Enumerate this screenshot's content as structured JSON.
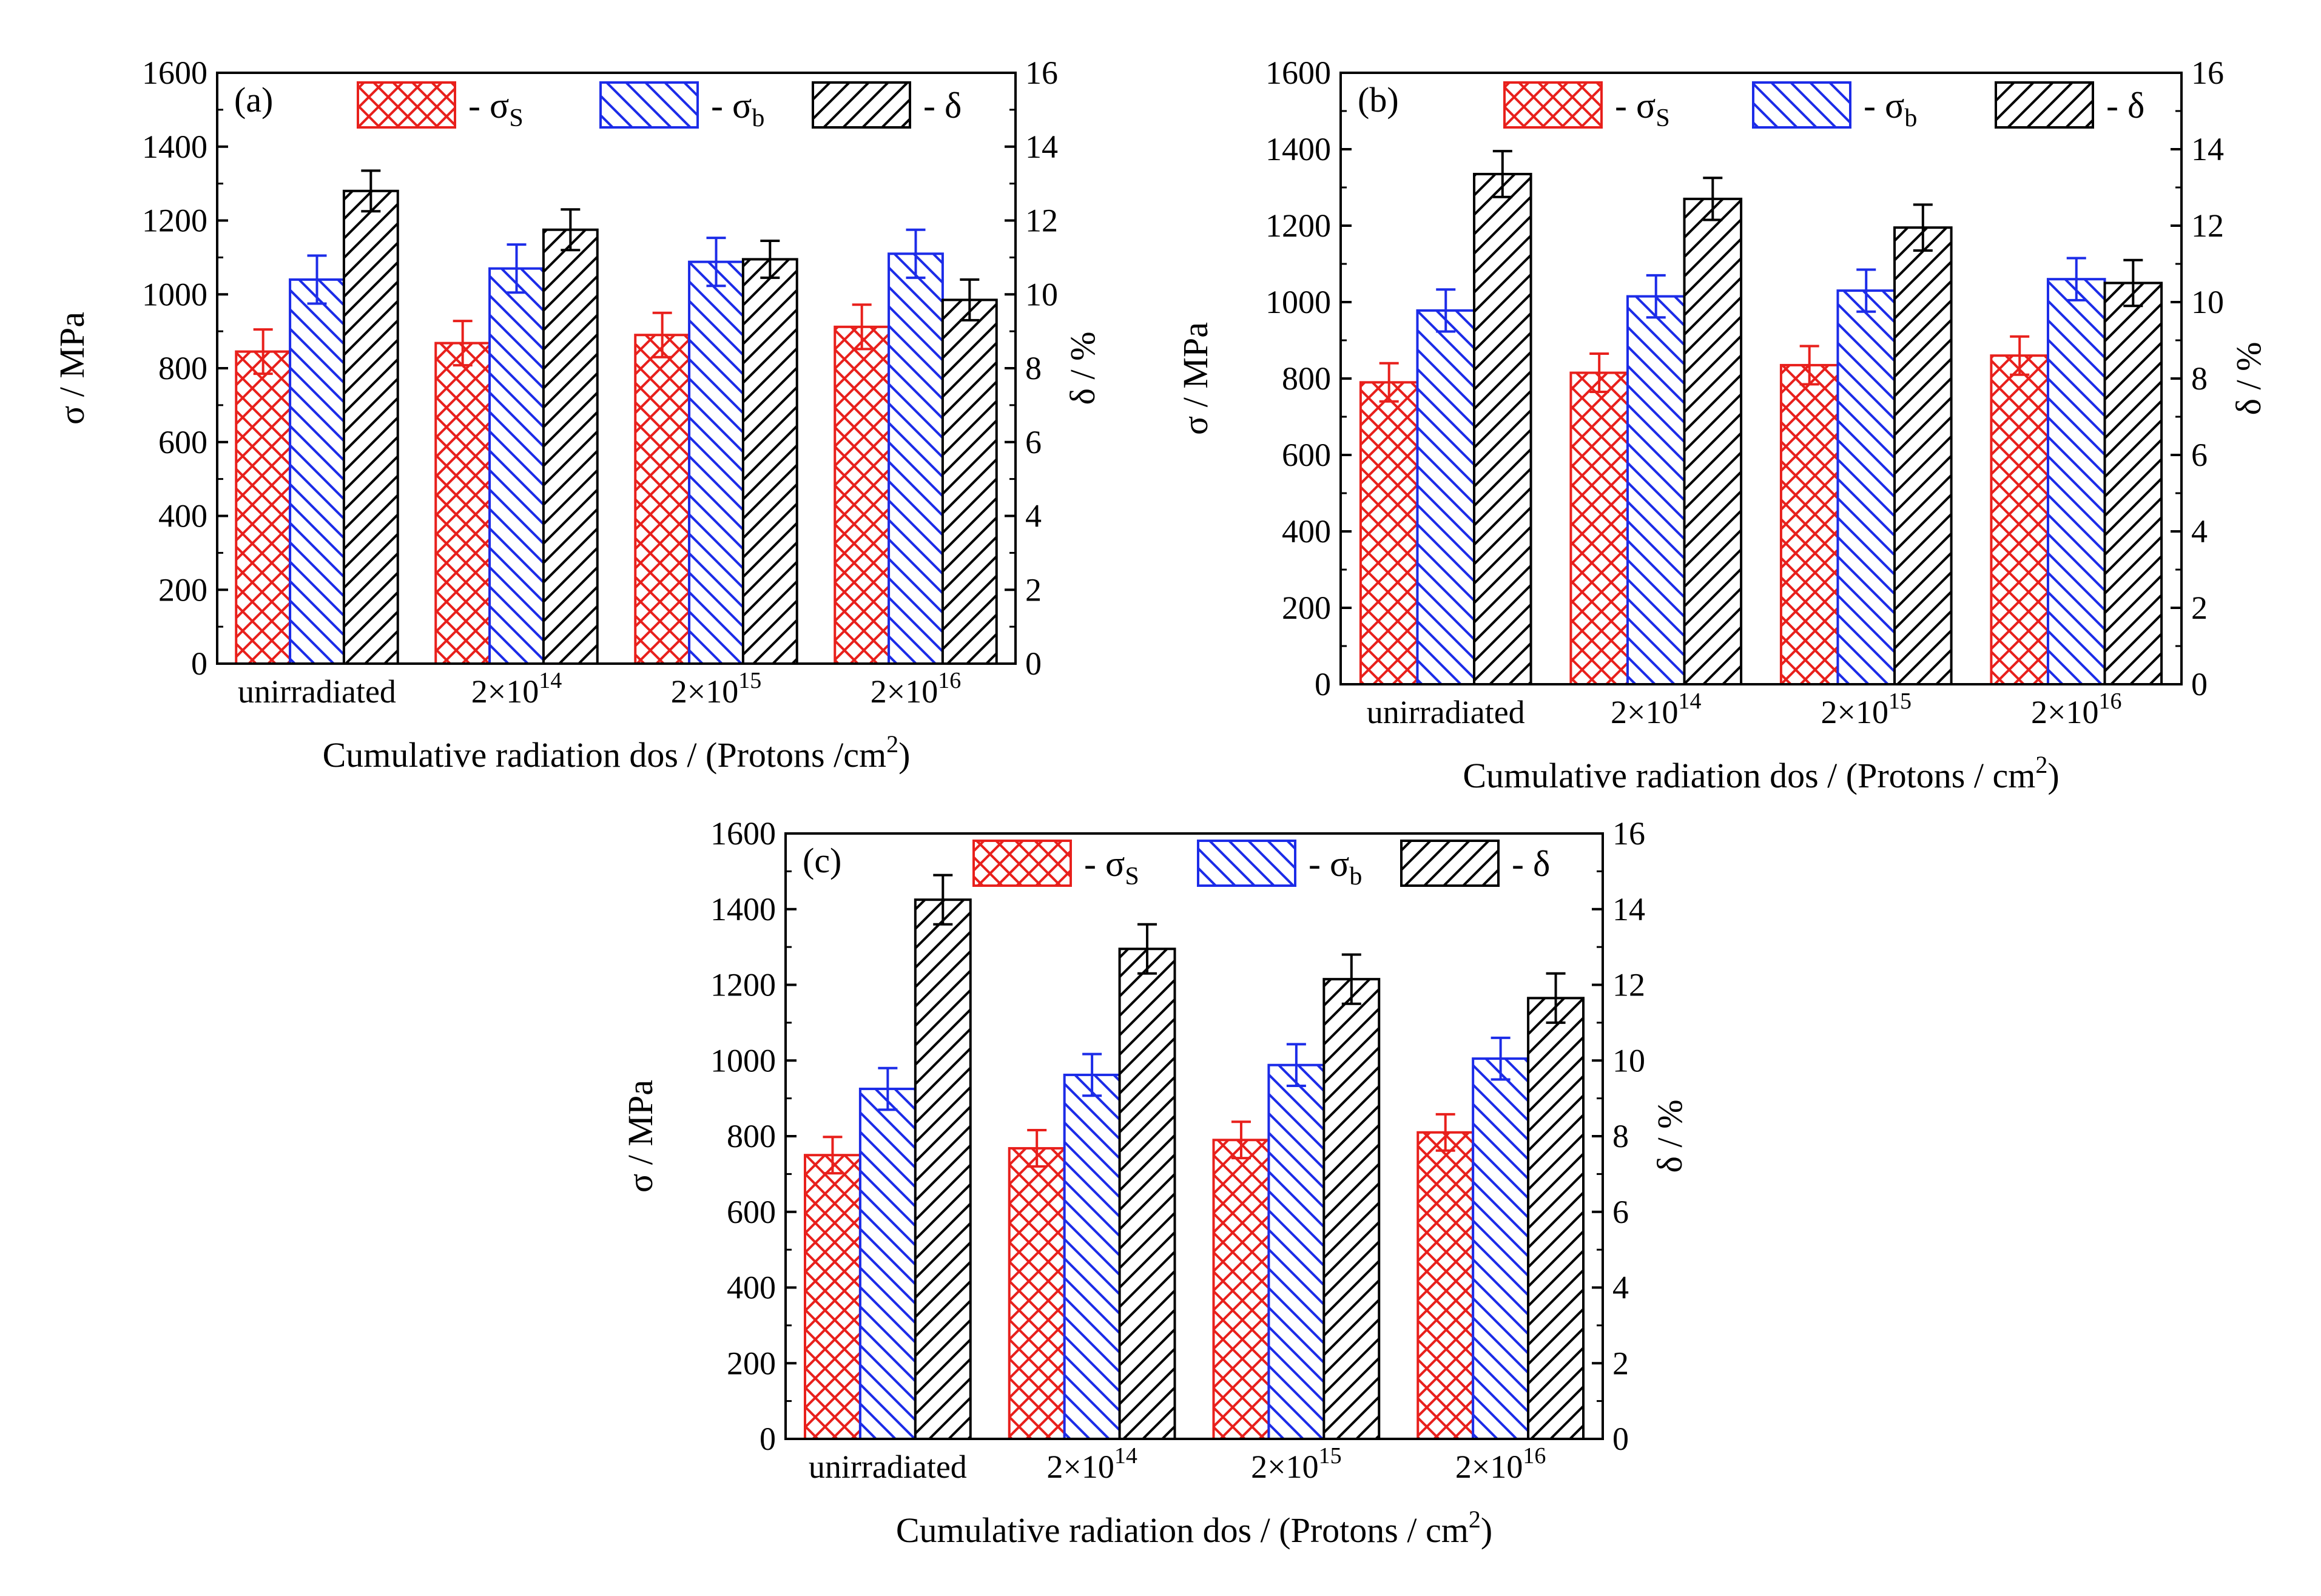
{
  "figure": {
    "description_label": "Three-panel grouped bar chart"
  },
  "legend": {
    "items": [
      {
        "key": "sigma_s",
        "dash": "-",
        "symbol": "σ",
        "sub": "S",
        "color": "#e8201c",
        "pattern": "cross"
      },
      {
        "key": "sigma_b",
        "dash": "-",
        "symbol": "σ",
        "sub": "b",
        "color": "#1c2ce8",
        "pattern": "back"
      },
      {
        "key": "delta",
        "dash": "-",
        "symbol": "δ",
        "sub": "",
        "color": "#000000",
        "pattern": "fwd"
      }
    ]
  },
  "chart_data": [
    {
      "panel": "(a)",
      "type": "bar",
      "categories": [
        "unirradiated",
        "2×10^14",
        "2×10^15",
        "2×10^16"
      ],
      "category_labels": [
        {
          "base": "unirradiated",
          "exp": ""
        },
        {
          "base": "2×10",
          "exp": "14"
        },
        {
          "base": "2×10",
          "exp": "15"
        },
        {
          "base": "2×10",
          "exp": "16"
        }
      ],
      "series": [
        {
          "name": "σS",
          "axis": "left",
          "values": [
            845,
            868,
            890,
            912
          ],
          "errors": [
            60,
            60,
            60,
            60
          ]
        },
        {
          "name": "σb",
          "axis": "left",
          "values": [
            1040,
            1070,
            1088,
            1110
          ],
          "errors": [
            65,
            65,
            65,
            65
          ]
        },
        {
          "name": "δ",
          "axis": "right",
          "values": [
            12.8,
            11.75,
            10.95,
            9.85
          ],
          "errors": [
            0.55,
            0.55,
            0.5,
            0.55
          ]
        }
      ],
      "xlabel": "Cumulative radiation dos / (Protons /cm",
      "xlabel_sup": "2",
      "xlabel_end": ")",
      "ylabel_left": "σ / MPa",
      "ylabel_right": "δ / %",
      "ylim_left": [
        0,
        1600
      ],
      "ylim_right": [
        0,
        16
      ],
      "yticks_left": [
        "0",
        "200",
        "400",
        "600",
        "800",
        "1000",
        "1200",
        "1400",
        "1600"
      ],
      "yticks_right": [
        "0",
        "2",
        "4",
        "6",
        "8",
        "10",
        "12",
        "14",
        "16"
      ]
    },
    {
      "panel": "(b)",
      "type": "bar",
      "categories": [
        "unirradiated",
        "2×10^14",
        "2×10^15",
        "2×10^16"
      ],
      "category_labels": [
        {
          "base": "unirradiated",
          "exp": ""
        },
        {
          "base": "2×10",
          "exp": "14"
        },
        {
          "base": "2×10",
          "exp": "15"
        },
        {
          "base": "2×10",
          "exp": "16"
        }
      ],
      "series": [
        {
          "name": "σS",
          "axis": "left",
          "values": [
            790,
            815,
            835,
            860
          ],
          "errors": [
            50,
            50,
            50,
            50
          ]
        },
        {
          "name": "σb",
          "axis": "left",
          "values": [
            978,
            1015,
            1030,
            1060
          ],
          "errors": [
            55,
            55,
            55,
            55
          ]
        },
        {
          "name": "δ",
          "axis": "right",
          "values": [
            13.35,
            12.7,
            11.95,
            10.5
          ],
          "errors": [
            0.6,
            0.55,
            0.6,
            0.6
          ]
        }
      ],
      "xlabel": "Cumulative radiation dos / (Protons / cm",
      "xlabel_sup": "2",
      "xlabel_end": ")",
      "ylabel_left": "σ / MPa",
      "ylabel_right": "δ / %",
      "ylim_left": [
        0,
        1600
      ],
      "ylim_right": [
        0,
        16
      ],
      "yticks_left": [
        "0",
        "200",
        "400",
        "600",
        "800",
        "1000",
        "1200",
        "1400",
        "1600"
      ],
      "yticks_right": [
        "0",
        "2",
        "4",
        "6",
        "8",
        "10",
        "12",
        "14",
        "16"
      ]
    },
    {
      "panel": "(c)",
      "type": "bar",
      "categories": [
        "unirradiated",
        "2×10^14",
        "2×10^15",
        "2×10^16"
      ],
      "category_labels": [
        {
          "base": "unirradiated",
          "exp": ""
        },
        {
          "base": "2×10",
          "exp": "14"
        },
        {
          "base": "2×10",
          "exp": "15"
        },
        {
          "base": "2×10",
          "exp": "16"
        }
      ],
      "series": [
        {
          "name": "σS",
          "axis": "left",
          "values": [
            750,
            768,
            790,
            810
          ],
          "errors": [
            48,
            48,
            48,
            48
          ]
        },
        {
          "name": "σb",
          "axis": "left",
          "values": [
            925,
            962,
            988,
            1005
          ],
          "errors": [
            55,
            55,
            55,
            55
          ]
        },
        {
          "name": "δ",
          "axis": "right",
          "values": [
            14.25,
            12.95,
            12.15,
            11.65
          ],
          "errors": [
            0.65,
            0.65,
            0.65,
            0.65
          ]
        }
      ],
      "xlabel": "Cumulative radiation dos / (Protons / cm",
      "xlabel_sup": "2",
      "xlabel_end": ")",
      "ylabel_left": "σ / MPa",
      "ylabel_right": "δ / %",
      "ylim_left": [
        0,
        1600
      ],
      "ylim_right": [
        0,
        16
      ],
      "yticks_left": [
        "0",
        "200",
        "400",
        "600",
        "800",
        "1000",
        "1200",
        "1400",
        "1600"
      ],
      "yticks_right": [
        "0",
        "2",
        "4",
        "6",
        "8",
        "10",
        "12",
        "14",
        "16"
      ]
    }
  ]
}
